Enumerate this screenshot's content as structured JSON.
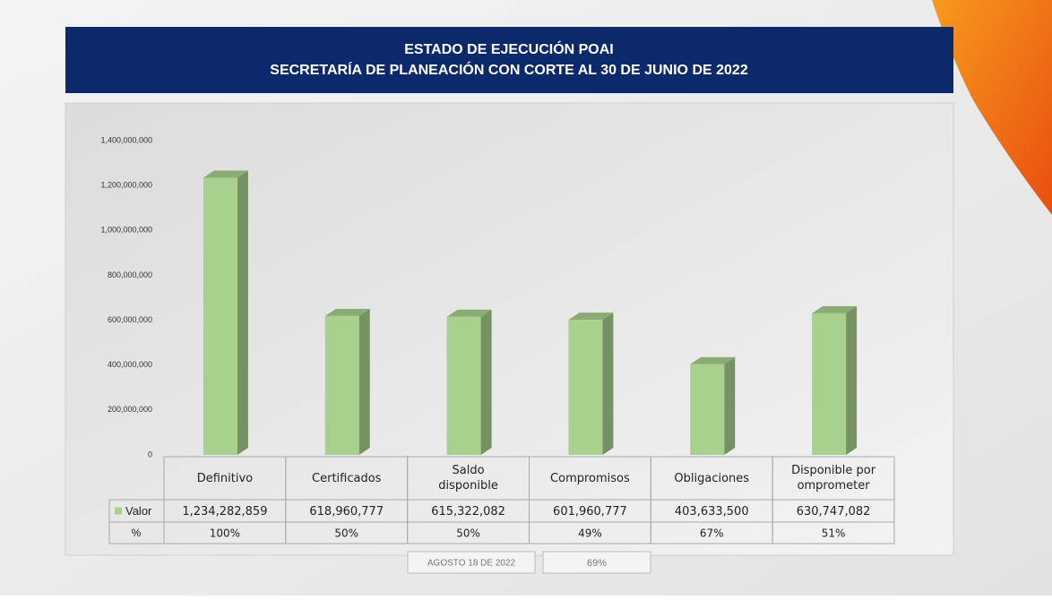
{
  "chart_data": {
    "type": "bar3d",
    "title": "ESTADO DE EJECUCIÓN POAI",
    "subtitle": "SECRETARÍA DE PLANEACIÓN CON CORTE AL 30 DE JUNIO DE 2022",
    "categories": [
      "Definitivo",
      "Certificados",
      "Saldo disponible",
      "Compromisos",
      "Obligaciones",
      "Disponible por omprometer"
    ],
    "series": [
      {
        "name": "Valor",
        "color": "#a9d18e",
        "values": [
          1234282859,
          618960777,
          615322082,
          601960777,
          403633500,
          630747082
        ],
        "value_labels": [
          "1,234,282,859",
          "618,960,777",
          "615,322,082",
          "601,960,777",
          "403,633,500",
          "630,747,082"
        ]
      }
    ],
    "percent_row": {
      "name": "%",
      "values": [
        100,
        50,
        50,
        49,
        67,
        51
      ],
      "value_labels": [
        "100%",
        "50%",
        "50%",
        "49%",
        "67%",
        "51%"
      ]
    },
    "ylim": [
      0,
      1400000000
    ],
    "yticks": [
      0,
      {
        "value": 200000000,
        "label": "200,000,000"
      },
      {
        "value": 400000000,
        "label": "400,000,000"
      },
      {
        "value": 600000000,
        "label": "600,000,000"
      },
      {
        "value": 800000000,
        "label": "800,000,000"
      },
      {
        "value": 1000000000,
        "label": "1,000,000,000"
      },
      {
        "value": 1200000000,
        "label": "1,200,000,000"
      },
      {
        "value": 1400000000,
        "label": "1,400,000,000"
      }
    ],
    "grid": false,
    "footer": {
      "date": "AGOSTO 18 DE 2022",
      "percent": {
        "value": 69,
        "label": "69%"
      }
    }
  }
}
